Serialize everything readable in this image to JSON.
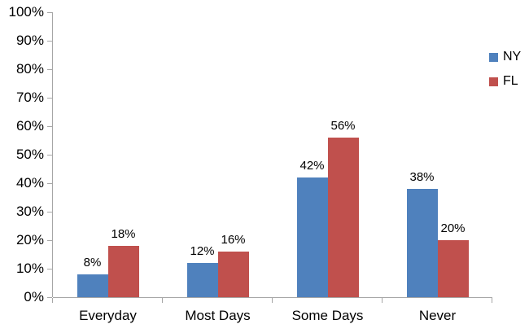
{
  "chart_data": {
    "type": "bar",
    "title": "",
    "xlabel": "",
    "ylabel": "",
    "categories": [
      "Everyday",
      "Most Days",
      "Some Days",
      "Never"
    ],
    "series": [
      {
        "name": "NY",
        "color": "#4f81bd",
        "values": [
          8,
          12,
          42,
          38
        ]
      },
      {
        "name": "FL",
        "color": "#c0504d",
        "values": [
          18,
          16,
          56,
          20
        ]
      }
    ],
    "value_labels": [
      [
        "8%",
        "12%",
        "42%",
        "38%"
      ],
      [
        "18%",
        "16%",
        "56%",
        "20%"
      ]
    ],
    "y_ticks": [
      "0%",
      "10%",
      "20%",
      "30%",
      "40%",
      "50%",
      "60%",
      "70%",
      "80%",
      "90%",
      "100%"
    ],
    "ylim": [
      0,
      100
    ],
    "grid": false,
    "legend_position": "right",
    "colors": {
      "axis": "#a6a6a6",
      "text": "#000000",
      "background": "#ffffff"
    }
  }
}
